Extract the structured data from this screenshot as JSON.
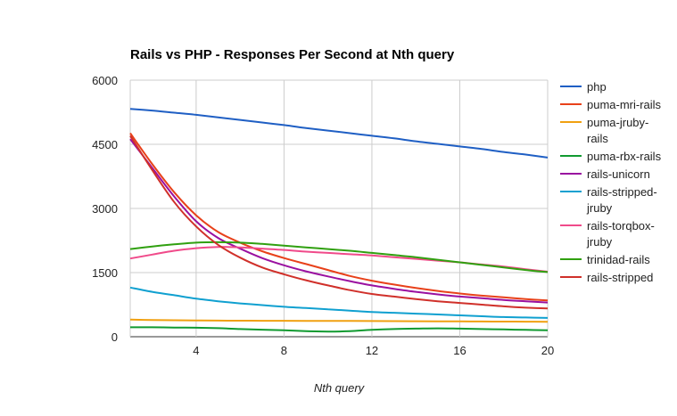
{
  "chart_data": {
    "type": "line",
    "title": "Rails vs PHP - Responses Per Second at Nth query",
    "xlabel": "Nth query",
    "ylabel": "",
    "xlim": [
      1,
      20
    ],
    "ylim": [
      0,
      6000
    ],
    "xticks": [
      4,
      8,
      12,
      16,
      20
    ],
    "yticks": [
      0,
      1500,
      3000,
      4500,
      6000
    ],
    "grid": true,
    "legend_position": "right",
    "x": [
      1,
      2,
      3,
      4,
      5,
      6,
      7,
      8,
      9,
      10,
      11,
      12,
      13,
      14,
      15,
      16,
      17,
      18,
      19,
      20
    ],
    "series": [
      {
        "name": "php",
        "legend_lines": [
          "php"
        ],
        "color": "#1f5fc4",
        "values": [
          5330,
          5290,
          5240,
          5190,
          5130,
          5070,
          5010,
          4950,
          4880,
          4820,
          4760,
          4700,
          4640,
          4570,
          4510,
          4450,
          4390,
          4320,
          4260,
          4190
        ]
      },
      {
        "name": "puma-mri-rails",
        "legend_lines": [
          "puma-mri-rails"
        ],
        "color": "#e8411a",
        "values": [
          4760,
          4040,
          3380,
          2840,
          2450,
          2200,
          2000,
          1840,
          1700,
          1560,
          1420,
          1310,
          1220,
          1140,
          1070,
          1010,
          960,
          920,
          880,
          850
        ]
      },
      {
        "name": "puma-jruby-rails",
        "legend_lines": [
          "puma-jruby-",
          "rails"
        ],
        "color": "#f0a010",
        "values": [
          400,
          390,
          385,
          380,
          378,
          375,
          373,
          372,
          371,
          370,
          368,
          366,
          364,
          362,
          360,
          358,
          356,
          354,
          352,
          350
        ]
      },
      {
        "name": "puma-rbx-rails",
        "legend_lines": [
          "puma-rbx-rails"
        ],
        "color": "#109a30",
        "values": [
          220,
          220,
          215,
          210,
          200,
          180,
          165,
          150,
          130,
          120,
          130,
          160,
          180,
          190,
          195,
          190,
          180,
          170,
          160,
          150
        ]
      },
      {
        "name": "rails-unicorn",
        "legend_lines": [
          "rails-unicorn"
        ],
        "color": "#9a10a0",
        "values": [
          4620,
          3950,
          3280,
          2700,
          2310,
          2060,
          1840,
          1670,
          1530,
          1410,
          1300,
          1200,
          1120,
          1050,
          990,
          940,
          900,
          860,
          830,
          800
        ]
      },
      {
        "name": "rails-stripped-jruby",
        "legend_lines": [
          "rails-stripped-",
          "jruby"
        ],
        "color": "#10a0d0",
        "values": [
          1150,
          1050,
          970,
          890,
          830,
          780,
          740,
          700,
          670,
          640,
          610,
          580,
          560,
          540,
          520,
          500,
          480,
          460,
          450,
          440
        ]
      },
      {
        "name": "rails-torqbox-jruby",
        "legend_lines": [
          "rails-torqbox-",
          "jruby"
        ],
        "color": "#f04a8a",
        "values": [
          1830,
          1920,
          2010,
          2070,
          2100,
          2090,
          2060,
          2030,
          1990,
          1960,
          1930,
          1900,
          1860,
          1820,
          1780,
          1740,
          1690,
          1640,
          1580,
          1520
        ]
      },
      {
        "name": "trinidad-rails",
        "legend_lines": [
          "trinidad-rails"
        ],
        "color": "#30a010",
        "values": [
          2050,
          2110,
          2160,
          2200,
          2210,
          2200,
          2170,
          2130,
          2090,
          2050,
          2010,
          1960,
          1910,
          1860,
          1800,
          1740,
          1680,
          1620,
          1560,
          1510
        ]
      },
      {
        "name": "rails-stripped",
        "legend_lines": [
          "rails-stripped"
        ],
        "color": "#d0302a",
        "values": [
          4700,
          3900,
          3150,
          2580,
          2150,
          1850,
          1620,
          1460,
          1320,
          1200,
          1090,
          1000,
          940,
          880,
          830,
          790,
          750,
          710,
          680,
          660
        ]
      }
    ]
  }
}
